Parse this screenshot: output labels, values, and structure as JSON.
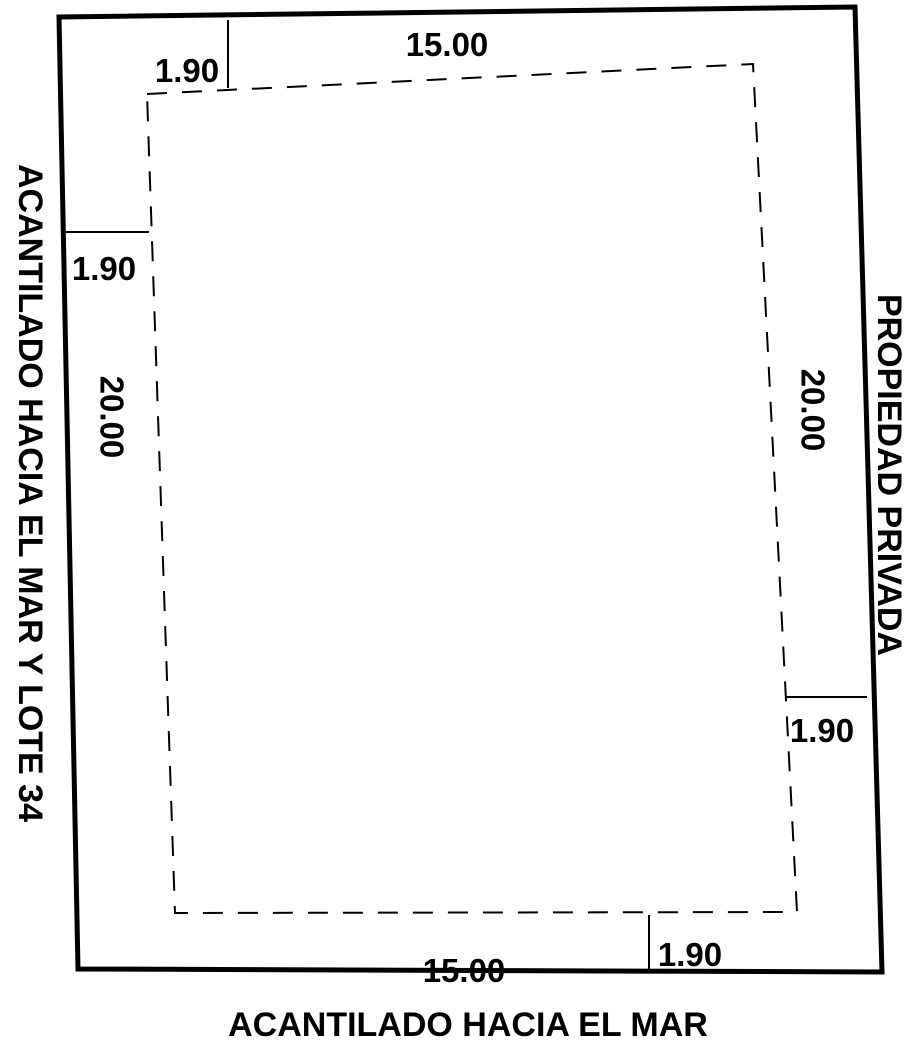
{
  "plan": {
    "line_color": "#000000",
    "background": "#ffffff",
    "dimensions": {
      "top_length": "15.00",
      "bottom_length": "15.00",
      "left_length": "20.00",
      "right_length": "20.00",
      "setback_top": "1.90",
      "setback_left": "1.90",
      "setback_right": "1.90",
      "setback_bottom": "1.90"
    },
    "boundaries": {
      "bottom": "ACANTILADO HACIA EL MAR",
      "left": "ACANTILADO HACIA EL MAR Y LOTE 34",
      "right": "PROPIEDAD PRIVADA"
    }
  }
}
